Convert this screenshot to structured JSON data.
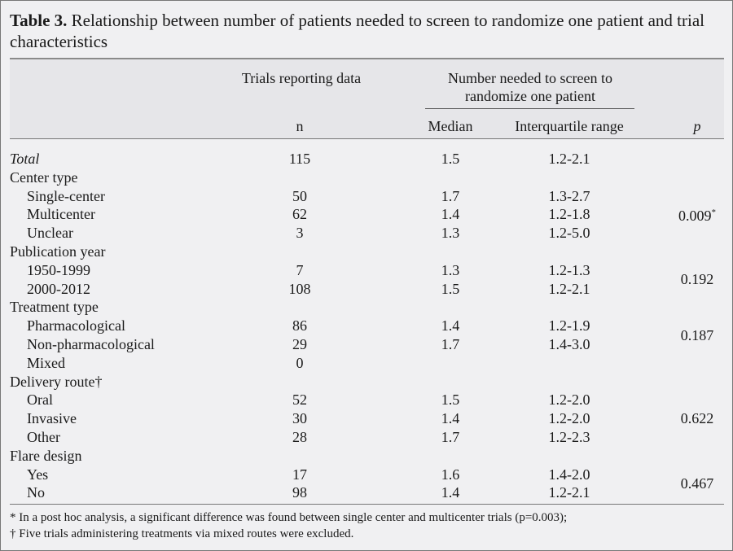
{
  "title": {
    "label": "Table 3.",
    "text": "Relationship between number of patients needed to screen to randomize one patient and trial characteristics"
  },
  "header": {
    "trials_group": "Trials reporting data",
    "nns_group_line1": "Number needed to screen to",
    "nns_group_line2": "randomize one patient",
    "n": "n",
    "median": "Median",
    "iqr": "Interquartile range",
    "p": "p"
  },
  "rows": [
    {
      "label": "Total",
      "n": "115",
      "median": "1.5",
      "iqr": "1.2-2.1"
    },
    {
      "label": "Center type"
    },
    {
      "label": "Single-center",
      "n": "50",
      "median": "1.7",
      "iqr": "1.3-2.7",
      "p": "0.009",
      "p_mark": "*"
    },
    {
      "label": "Multicenter",
      "n": "62",
      "median": "1.4",
      "iqr": "1.2-1.8"
    },
    {
      "label": "Unclear",
      "n": "3",
      "median": "1.3",
      "iqr": "1.2-5.0"
    },
    {
      "label": "Publication year"
    },
    {
      "label": "1950-1999",
      "n": "7",
      "median": "1.3",
      "iqr": "1.2-1.3",
      "p": "0.192"
    },
    {
      "label": "2000-2012",
      "n": "108",
      "median": "1.5",
      "iqr": "1.2-2.1"
    },
    {
      "label": "Treatment type"
    },
    {
      "label": "Pharmacological",
      "n": "86",
      "median": "1.4",
      "iqr": "1.2-1.9",
      "p": "0.187"
    },
    {
      "label": "Non-pharmacological",
      "n": "29",
      "median": "1.7",
      "iqr": "1.4-3.0"
    },
    {
      "label": "Mixed",
      "n": "0",
      "median": "",
      "iqr": ""
    },
    {
      "label": "Delivery route†"
    },
    {
      "label": "Oral",
      "n": "52",
      "median": "1.5",
      "iqr": "1.2-2.0",
      "p": "0.622"
    },
    {
      "label": "Invasive",
      "n": "30",
      "median": "1.4",
      "iqr": "1.2-2.0"
    },
    {
      "label": "Other",
      "n": "28",
      "median": "1.7",
      "iqr": "1.2-2.3"
    },
    {
      "label": "Flare design"
    },
    {
      "label": "Yes",
      "n": "17",
      "median": "1.6",
      "iqr": "1.4-2.0",
      "p": "0.467"
    },
    {
      "label": "No",
      "n": "98",
      "median": "1.4",
      "iqr": "1.2-2.1"
    }
  ],
  "footnotes": {
    "line1": "* In a post hoc analysis, a significant difference was found between single center and multicenter trials (p=0.003);",
    "line2": "† Five trials administering treatments via mixed routes were excluded."
  }
}
